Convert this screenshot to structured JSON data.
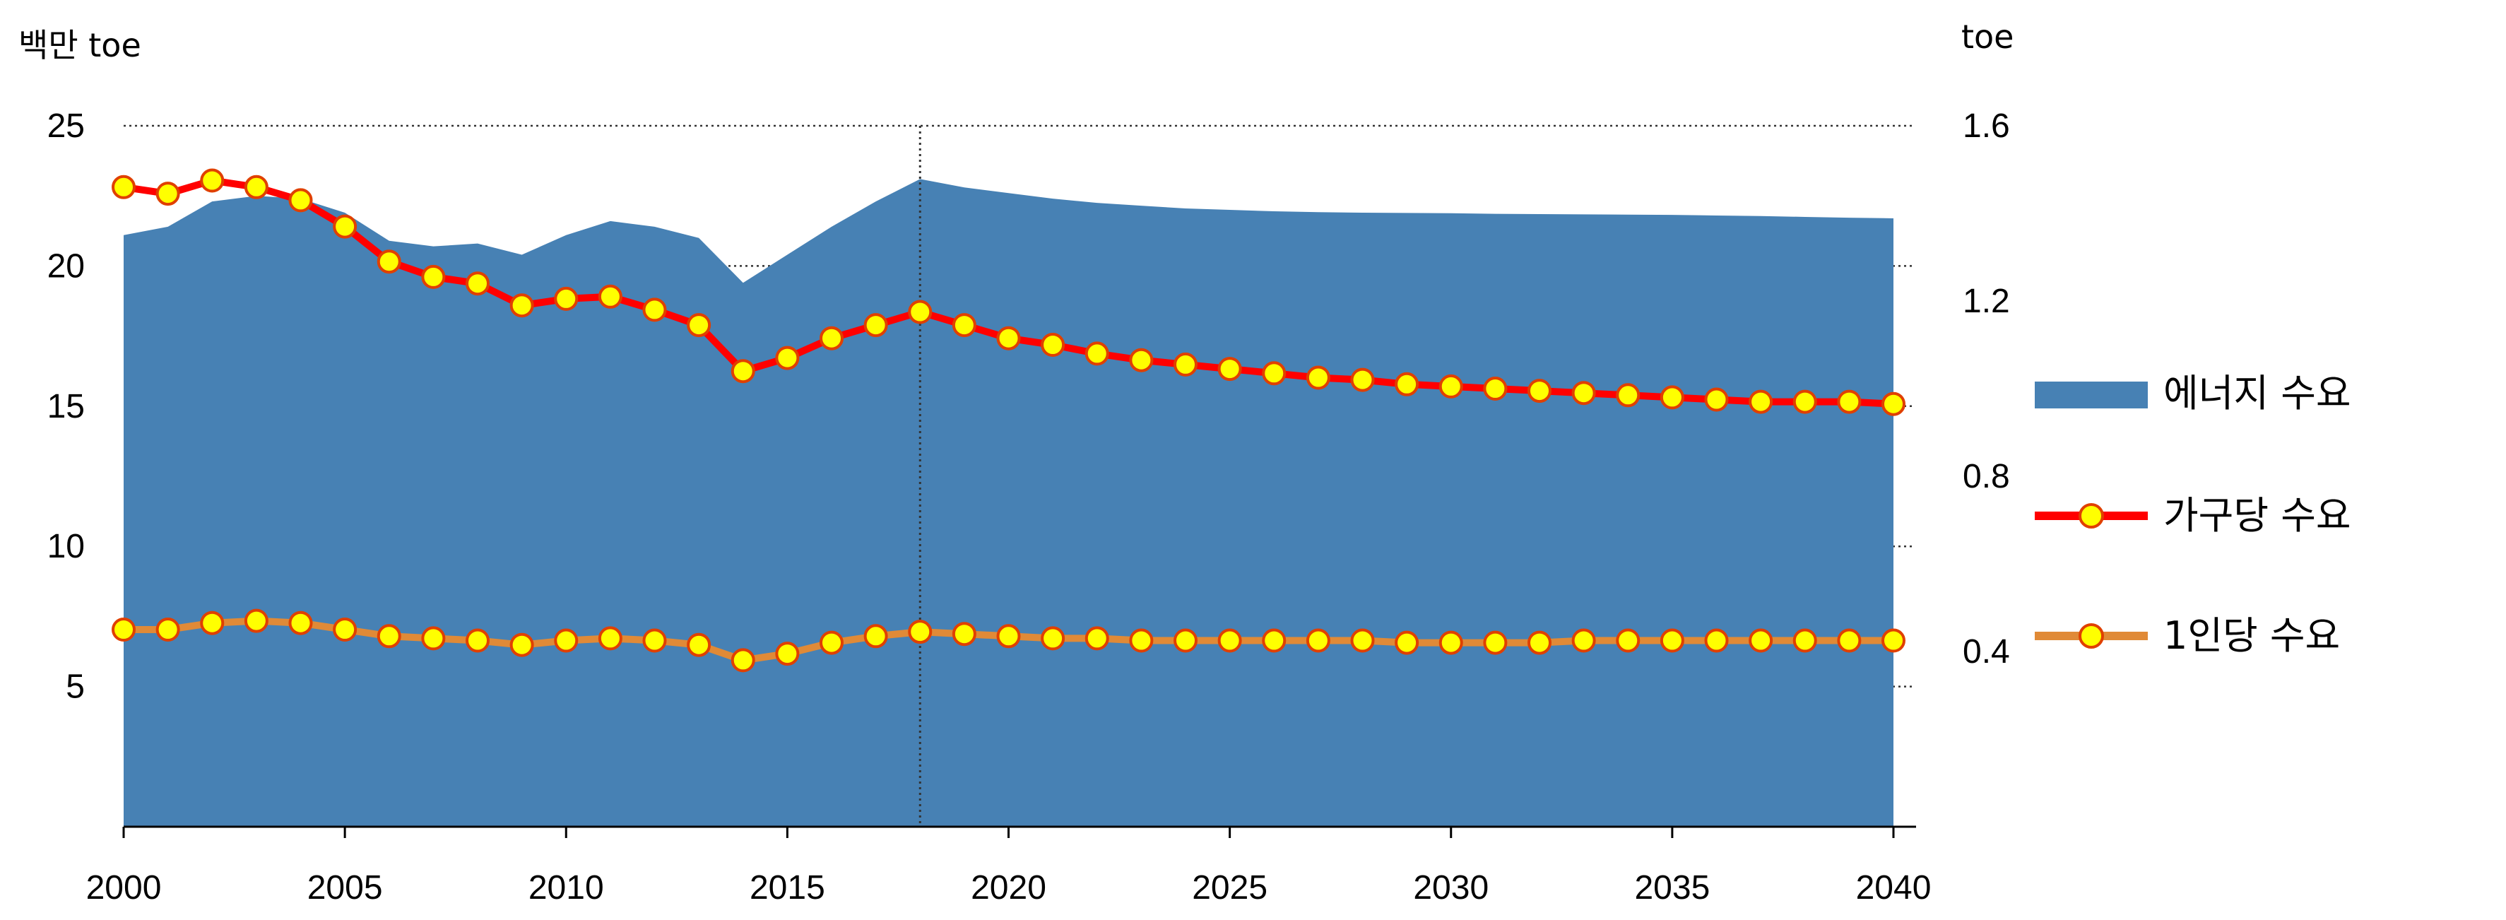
{
  "chart_data": {
    "type": "area+line",
    "left_axis": {
      "unit": "백만 toe",
      "range": [
        0,
        25
      ],
      "ticks": [
        "5",
        "10",
        "15",
        "20",
        "25"
      ],
      "tick_values": [
        5,
        10,
        15,
        20,
        25
      ]
    },
    "right_axis": {
      "unit": "toe",
      "range": [
        0,
        1.6
      ],
      "ticks": [
        "0.4",
        "0.8",
        "1.2",
        "1.6"
      ],
      "tick_values": [
        0.4,
        0.8,
        1.2,
        1.6
      ]
    },
    "x_axis": {
      "range": [
        2000,
        2040
      ],
      "tick_labels": [
        "2000",
        "2005",
        "2010",
        "2015",
        "2020",
        "2025",
        "2030",
        "2035",
        "2040"
      ],
      "tick_values": [
        2000,
        2005,
        2010,
        2015,
        2020,
        2025,
        2030,
        2035,
        2040
      ]
    },
    "reference_year": 2018,
    "grid": "dotted horizontal at major ticks",
    "legend_position": "right",
    "x": [
      2000,
      2001,
      2002,
      2003,
      2004,
      2005,
      2006,
      2007,
      2008,
      2009,
      2010,
      2011,
      2012,
      2013,
      2014,
      2015,
      2016,
      2017,
      2018,
      2019,
      2020,
      2021,
      2022,
      2023,
      2024,
      2025,
      2026,
      2027,
      2028,
      2029,
      2030,
      2031,
      2032,
      2033,
      2034,
      2035,
      2036,
      2037,
      2038,
      2039,
      2040
    ],
    "series": [
      {
        "name": "에너지 수요",
        "kind": "area",
        "axis": "left",
        "color": "#4781b4",
        "values": [
          21.1,
          21.4,
          22.3,
          22.5,
          22.4,
          21.9,
          20.9,
          20.7,
          20.8,
          20.4,
          21.1,
          21.6,
          21.4,
          21.0,
          19.4,
          20.4,
          21.4,
          22.3,
          23.1,
          22.8,
          22.6,
          22.4,
          22.25,
          22.15,
          22.05,
          22.0,
          21.95,
          21.92,
          21.9,
          21.89,
          21.88,
          21.86,
          21.85,
          21.84,
          21.83,
          21.82,
          21.8,
          21.78,
          21.75,
          21.72,
          21.7
        ]
      },
      {
        "name": "가구당 수요",
        "kind": "line",
        "axis": "right",
        "color": "#ff0000",
        "values": [
          1.46,
          1.445,
          1.475,
          1.46,
          1.43,
          1.37,
          1.29,
          1.255,
          1.24,
          1.19,
          1.205,
          1.21,
          1.18,
          1.145,
          1.04,
          1.07,
          1.115,
          1.145,
          1.175,
          1.145,
          1.115,
          1.1,
          1.08,
          1.065,
          1.055,
          1.045,
          1.035,
          1.025,
          1.02,
          1.01,
          1.005,
          1.0,
          0.995,
          0.99,
          0.985,
          0.98,
          0.975,
          0.97,
          0.97,
          0.97,
          0.965
        ]
      },
      {
        "name": "1인당 수요",
        "kind": "line",
        "axis": "right",
        "color": "#e08a37",
        "values": [
          0.45,
          0.45,
          0.465,
          0.47,
          0.465,
          0.45,
          0.435,
          0.43,
          0.425,
          0.415,
          0.425,
          0.43,
          0.425,
          0.415,
          0.38,
          0.395,
          0.42,
          0.435,
          0.445,
          0.44,
          0.435,
          0.43,
          0.43,
          0.425,
          0.425,
          0.425,
          0.425,
          0.425,
          0.425,
          0.42,
          0.42,
          0.42,
          0.42,
          0.425,
          0.425,
          0.425,
          0.425,
          0.425,
          0.425,
          0.425,
          0.425
        ]
      }
    ],
    "marker": {
      "fill": "#ffff00",
      "stroke": "#e04000"
    }
  }
}
